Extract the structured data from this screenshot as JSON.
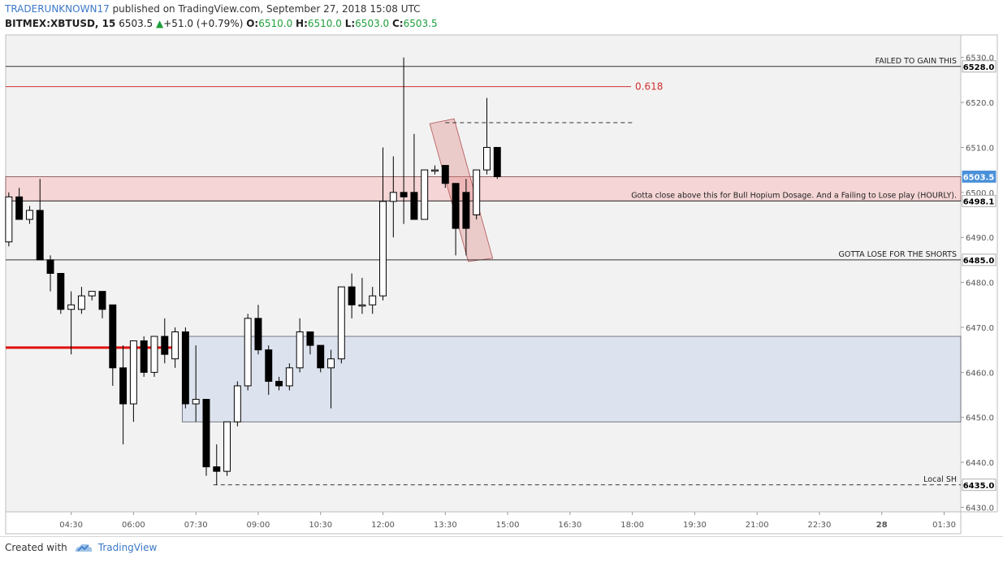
{
  "header": {
    "author": "TRADERUNKNOWN17",
    "published_text": " published on TradingView.com, September 27, 2018 15:08 UTC",
    "symbol": "BITMEX:XBTUSD, 15",
    "last": "6503.5",
    "change_arrow": "▲",
    "change": "+51.0 (+0.79%)",
    "o_label": "O:",
    "o_value": "6510.0",
    "h_label": "H:",
    "h_value": "6510.0",
    "l_label": "L:",
    "l_value": "6503.0",
    "c_label": "C:",
    "c_value": "6503.5"
  },
  "footer": {
    "created_with": "Created with",
    "brand": "TradingView"
  },
  "colors": {
    "plot_bg": "#f2f2f2",
    "up_fill": "#ffffff",
    "down_fill": "#000000",
    "resistance_line": "#d32f2f",
    "pink_zone": "#f5d5d5",
    "blue_zone": "#dde3ee",
    "brand_blue": "#3c78c8"
  },
  "chart_data": {
    "type": "candlestick",
    "timeframe_minutes": 15,
    "ylim": [
      6429,
      6535
    ],
    "y_ticks": [
      6430,
      6440,
      6450,
      6460,
      6470,
      6480,
      6490,
      6500,
      6510,
      6520,
      6530
    ],
    "y_tick_labels": [
      "6430.0",
      "6440.0",
      "6450.0",
      "6460.0",
      "6470.0",
      "6480.0",
      "6490.0",
      "6500.0",
      "6510.0",
      "6520.0",
      "6530.0"
    ],
    "x_tick_labels": [
      "04:30",
      "06:00",
      "07:30",
      "09:00",
      "10:30",
      "12:00",
      "13:30",
      "15:00",
      "16:30",
      "18:00",
      "19:30",
      "21:00",
      "22:30",
      "28",
      "01:30"
    ],
    "x_tick_bar_index": [
      6,
      12,
      18,
      24,
      30,
      36,
      42,
      48,
      54,
      60,
      66,
      72,
      78,
      84,
      90
    ],
    "x_range_bars": [
      -0.3,
      91.6
    ],
    "candles": [
      {
        "o": 6489,
        "h": 6500,
        "l": 6488,
        "c": 6499
      },
      {
        "o": 6499,
        "h": 6501,
        "l": 6494,
        "c": 6494
      },
      {
        "o": 6494,
        "h": 6497,
        "l": 6493,
        "c": 6496
      },
      {
        "o": 6496,
        "h": 6503,
        "l": 6485,
        "c": 6485
      },
      {
        "o": 6485,
        "h": 6486,
        "l": 6478,
        "c": 6482
      },
      {
        "o": 6482,
        "h": 6482,
        "l": 6473,
        "c": 6474
      },
      {
        "o": 6474,
        "h": 6478,
        "l": 6464,
        "c": 6475
      },
      {
        "o": 6474,
        "h": 6479,
        "l": 6473,
        "c": 6477
      },
      {
        "o": 6477,
        "h": 6478,
        "l": 6476,
        "c": 6478
      },
      {
        "o": 6478,
        "h": 6478,
        "l": 6472,
        "c": 6474
      },
      {
        "o": 6475,
        "h": 6475,
        "l": 6457,
        "c": 6461
      },
      {
        "o": 6461,
        "h": 6466,
        "l": 6444,
        "c": 6453
      },
      {
        "o": 6453,
        "h": 6467,
        "l": 6449,
        "c": 6467
      },
      {
        "o": 6467,
        "h": 6468,
        "l": 6459,
        "c": 6460
      },
      {
        "o": 6460,
        "h": 6468,
        "l": 6459,
        "c": 6468
      },
      {
        "o": 6468,
        "h": 6472,
        "l": 6462,
        "c": 6464
      },
      {
        "o": 6463,
        "h": 6470,
        "l": 6461,
        "c": 6469
      },
      {
        "o": 6469,
        "h": 6470,
        "l": 6452,
        "c": 6453
      },
      {
        "o": 6453,
        "h": 6466,
        "l": 6449,
        "c": 6454
      },
      {
        "o": 6454,
        "h": 6454,
        "l": 6437,
        "c": 6439
      },
      {
        "o": 6439,
        "h": 6444,
        "l": 6435,
        "c": 6438
      },
      {
        "o": 6438,
        "h": 6449,
        "l": 6437,
        "c": 6449
      },
      {
        "o": 6449,
        "h": 6458,
        "l": 6448,
        "c": 6457
      },
      {
        "o": 6457,
        "h": 6473,
        "l": 6456,
        "c": 6472
      },
      {
        "o": 6472,
        "h": 6475,
        "l": 6464,
        "c": 6465
      },
      {
        "o": 6465,
        "h": 6466,
        "l": 6455,
        "c": 6458
      },
      {
        "o": 6458,
        "h": 6459,
        "l": 6456,
        "c": 6457
      },
      {
        "o": 6457,
        "h": 6462,
        "l": 6456,
        "c": 6461
      },
      {
        "o": 6461,
        "h": 6472,
        "l": 6460,
        "c": 6469
      },
      {
        "o": 6469,
        "h": 6469,
        "l": 6464,
        "c": 6466
      },
      {
        "o": 6466,
        "h": 6466,
        "l": 6460,
        "c": 6461
      },
      {
        "o": 6461,
        "h": 6465,
        "l": 6452,
        "c": 6463
      },
      {
        "o": 6463,
        "h": 6479,
        "l": 6462,
        "c": 6479
      },
      {
        "o": 6479,
        "h": 6482,
        "l": 6472,
        "c": 6475
      },
      {
        "o": 6475,
        "h": 6481,
        "l": 6473,
        "c": 6475
      },
      {
        "o": 6475,
        "h": 6479,
        "l": 6473,
        "c": 6477
      },
      {
        "o": 6477,
        "h": 6510,
        "l": 6476,
        "c": 6498
      },
      {
        "o": 6498,
        "h": 6508,
        "l": 6490,
        "c": 6500
      },
      {
        "o": 6500,
        "h": 6530,
        "l": 6493,
        "c": 6499
      },
      {
        "o": 6500,
        "h": 6513,
        "l": 6494,
        "c": 6494
      },
      {
        "o": 6494,
        "h": 6505,
        "l": 6494,
        "c": 6505
      },
      {
        "o": 6505,
        "h": 6506,
        "l": 6504,
        "c": 6505
      },
      {
        "o": 6506,
        "h": 6506,
        "l": 6501,
        "c": 6502
      },
      {
        "o": 6502,
        "h": 6502,
        "l": 6486,
        "c": 6492
      },
      {
        "o": 6500,
        "h": 6503,
        "l": 6486,
        "c": 6492
      },
      {
        "o": 6495,
        "h": 6505,
        "l": 6494,
        "c": 6505
      },
      {
        "o": 6505,
        "h": 6521,
        "l": 6504,
        "c": 6510
      },
      {
        "o": 6510,
        "h": 6510,
        "l": 6503,
        "c": 6503.5
      }
    ],
    "levels": [
      {
        "price": 6528.0,
        "label": "FAILED TO GAIN THIS",
        "tag": "6528.0"
      },
      {
        "price": 6498.1,
        "label": "Gotta close above this for Bull Hopium Dosage. And a Failing to Lose play (HOURLY).",
        "tag": "6498.1"
      },
      {
        "price": 6485.0,
        "label": "GOTTA LOSE FOR THE SHORTS",
        "tag": "6485.0"
      },
      {
        "price": 6435.0,
        "label": "Local SH",
        "tag": "6435.0"
      }
    ],
    "fib_level": {
      "price": 6523.5,
      "label": "0.618"
    },
    "last_price_tag": {
      "price": 6503.5,
      "tag": "6503.5"
    },
    "pink_zone": {
      "from": 6498.1,
      "to": 6503.5
    },
    "blue_zone": {
      "from": 6449,
      "to": 6468,
      "start_bar": 17
    },
    "red_support": {
      "price": 6465.5,
      "end_bar": 16
    },
    "dashed_high": {
      "price": 6515.5,
      "start_bar": 42,
      "end_bar": 60
    },
    "pink_channel": {
      "start_bar": 41,
      "end_bar": 46,
      "top_price": 6516,
      "bottom_price": 6485
    }
  }
}
